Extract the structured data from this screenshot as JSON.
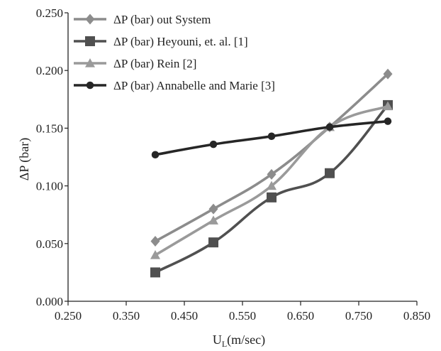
{
  "chart_data": {
    "type": "line",
    "title": "",
    "xlabel": "U",
    "xlabel_sub": "L",
    "xlabel_unit": "(m/sec)",
    "ylabel": "ΔP (bar)",
    "xlim": [
      0.25,
      0.85
    ],
    "ylim": [
      0.0,
      0.25
    ],
    "x_ticks": [
      "0.250",
      "0.350",
      "0.450",
      "0.550",
      "0.650",
      "0.750",
      "0.850"
    ],
    "y_ticks": [
      "0.000",
      "0.050",
      "0.100",
      "0.150",
      "0.200",
      "0.250"
    ],
    "grid": false,
    "legend_position": "top-left",
    "series": [
      {
        "name": "ΔP (bar) out System",
        "marker": "diamond",
        "color": "#8c8c8c",
        "x": [
          0.4,
          0.5,
          0.6,
          0.7,
          0.8
        ],
        "y": [
          0.052,
          0.08,
          0.11,
          0.151,
          0.197
        ]
      },
      {
        "name": "ΔP (bar) Heyouni, et. al. [1]",
        "marker": "square",
        "color": "#505050",
        "x": [
          0.4,
          0.5,
          0.6,
          0.7,
          0.8
        ],
        "y": [
          0.025,
          0.051,
          0.09,
          0.111,
          0.17
        ]
      },
      {
        "name": "ΔP (bar) Rein [2]",
        "marker": "triangle",
        "color": "#9a9a9a",
        "x": [
          0.4,
          0.5,
          0.6,
          0.7,
          0.8
        ],
        "y": [
          0.04,
          0.07,
          0.1,
          0.151,
          0.169
        ]
      },
      {
        "name": "ΔP (bar) Annabelle and Marie [3]",
        "marker": "circle",
        "color": "#262626",
        "x": [
          0.4,
          0.5,
          0.6,
          0.7,
          0.8
        ],
        "y": [
          0.127,
          0.136,
          0.143,
          0.151,
          0.156
        ]
      }
    ]
  }
}
